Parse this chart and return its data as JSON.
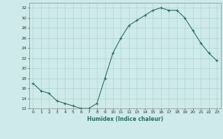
{
  "x": [
    0,
    1,
    2,
    3,
    4,
    5,
    6,
    7,
    8,
    9,
    10,
    11,
    12,
    13,
    14,
    15,
    16,
    17,
    18,
    19,
    20,
    21,
    22,
    23
  ],
  "y": [
    17,
    15.5,
    15,
    13.5,
    13,
    12.5,
    12,
    12,
    13,
    18,
    23,
    26,
    28.5,
    29.5,
    30.5,
    31.5,
    32,
    31.5,
    31.5,
    30,
    27.5,
    25,
    23,
    21.5
  ],
  "line_color": "#2a6e62",
  "marker": "+",
  "marker_size": 3,
  "bg_color": "#ceeaea",
  "grid_color": "#aacfcf",
  "xlabel": "Humidex (Indice chaleur)",
  "ylim": [
    12,
    33
  ],
  "xlim": [
    -0.5,
    23.5
  ],
  "yticks": [
    12,
    14,
    16,
    18,
    20,
    22,
    24,
    26,
    28,
    30,
    32
  ],
  "xticks": [
    0,
    1,
    2,
    3,
    4,
    5,
    6,
    7,
    8,
    9,
    10,
    11,
    12,
    13,
    14,
    15,
    16,
    17,
    18,
    19,
    20,
    21,
    22,
    23
  ]
}
